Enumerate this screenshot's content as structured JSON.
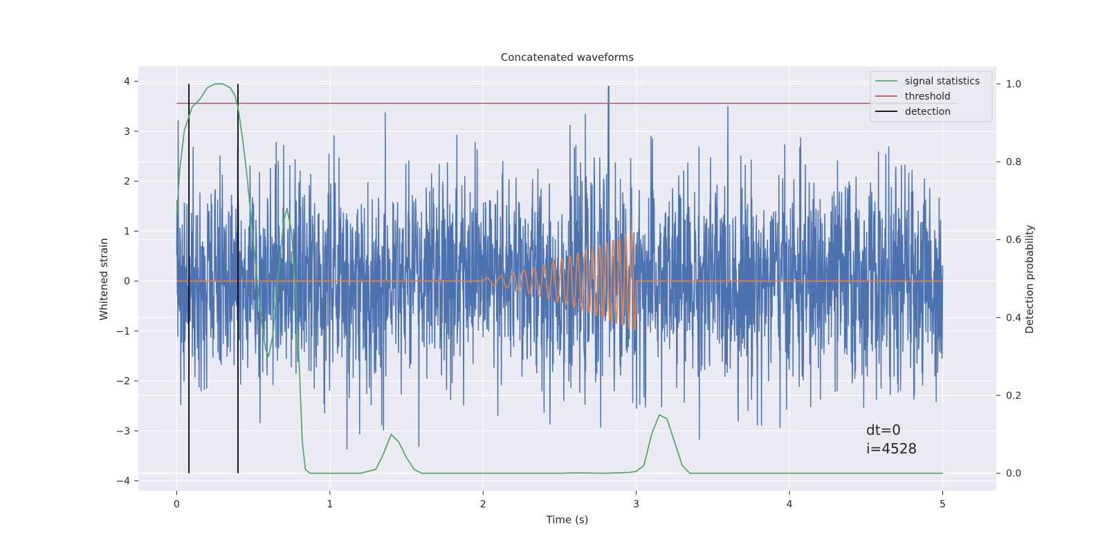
{
  "chart_data": {
    "type": "line",
    "title": "Concatenated waveforms",
    "xlabel": "Time (s)",
    "ylabel": "Whitened strain",
    "y2label": "Detection probability",
    "xlim": [
      -0.25,
      5.35
    ],
    "ylim": [
      -4.2,
      4.3
    ],
    "y2lim": [
      -0.045,
      1.045
    ],
    "xticks": [
      "0",
      "1",
      "2",
      "3",
      "4",
      "5"
    ],
    "yticks": [
      "4",
      "3",
      "2",
      "1",
      "0",
      "−1",
      "−2",
      "−3",
      "−4"
    ],
    "y2ticks": [
      "1.0",
      "0.8",
      "0.6",
      "0.4",
      "0.2",
      "0.0"
    ],
    "grid": true,
    "legend_position": "top-right",
    "background": "#eaeaf2",
    "series": [
      {
        "key": "strain",
        "axis": "left",
        "color": "#4c72b0",
        "note": "whitened noisy strain, approx. ±1.2 std, peak 3.9 at t≈2.82"
      },
      {
        "key": "template",
        "axis": "left",
        "color": "#dd8452",
        "note": "injected chirp from t=2.0 to t=3.0, amplitude growing to ≈1.0"
      },
      {
        "name": "signal statistics",
        "axis": "right",
        "color": "#55a868",
        "x": [
          0.0,
          0.02,
          0.05,
          0.1,
          0.15,
          0.2,
          0.25,
          0.3,
          0.35,
          0.38,
          0.4,
          0.43,
          0.46,
          0.5,
          0.55,
          0.58,
          0.6,
          0.63,
          0.66,
          0.7,
          0.72,
          0.75,
          0.78,
          0.8,
          0.82,
          0.84,
          0.87,
          0.9,
          1.0,
          1.2,
          1.3,
          1.35,
          1.4,
          1.45,
          1.5,
          1.55,
          1.6,
          1.7,
          2.0,
          2.5,
          2.6,
          2.8,
          2.95,
          3.0,
          3.05,
          3.1,
          3.15,
          3.2,
          3.25,
          3.3,
          3.35,
          4.0,
          5.0
        ],
        "values": [
          0.66,
          0.78,
          0.88,
          0.94,
          0.96,
          0.99,
          1.0,
          1.0,
          0.99,
          0.97,
          0.94,
          0.86,
          0.76,
          0.6,
          0.4,
          0.32,
          0.3,
          0.36,
          0.5,
          0.65,
          0.68,
          0.62,
          0.45,
          0.28,
          0.08,
          0.01,
          0.0,
          0.0,
          0.0,
          0.0,
          0.01,
          0.05,
          0.1,
          0.08,
          0.04,
          0.01,
          0.0,
          0.0,
          0.0,
          0.0,
          0.001,
          0.0,
          0.002,
          0.005,
          0.02,
          0.1,
          0.15,
          0.14,
          0.08,
          0.02,
          0.0,
          0.0,
          0.0
        ]
      },
      {
        "name": "threshold",
        "axis": "right",
        "color": "#c44e52",
        "x": [
          0.0,
          5.1
        ],
        "values": [
          0.95,
          0.95
        ]
      },
      {
        "name": "detection",
        "axis": "right",
        "color": "#000000",
        "x": [
          0.08,
          0.4
        ],
        "type": "vlines",
        "range": [
          0.0,
          1.0
        ]
      }
    ],
    "annotation": {
      "line1": "dt=0",
      "line2": "i=4528"
    }
  }
}
